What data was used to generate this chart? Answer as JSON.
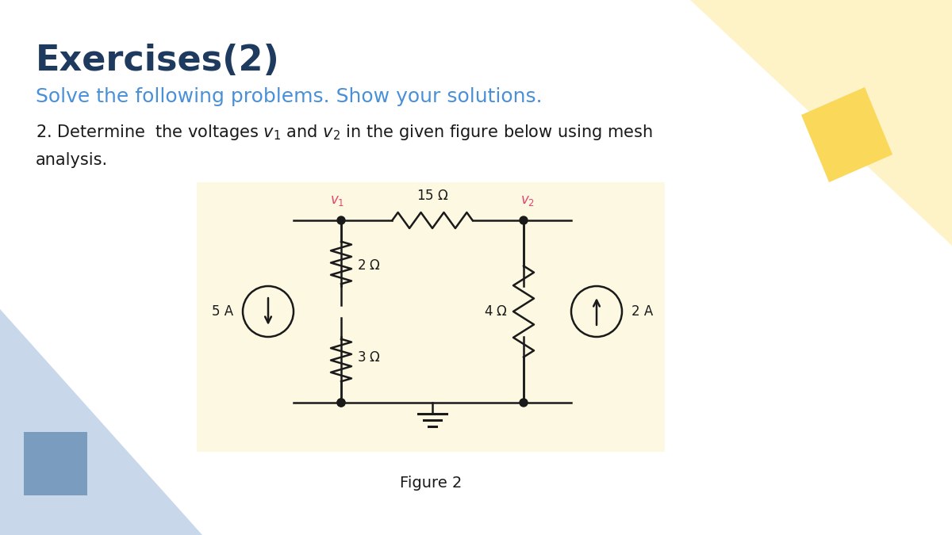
{
  "bg_color": "#ffffff",
  "circuit_bg": "#fdf8e1",
  "title": "Exercises(2)",
  "title_color": "#1e3a5f",
  "subtitle": "Solve the following problems. Show your solutions.",
  "subtitle_color": "#4a90d9",
  "text_color": "#1a1a1a",
  "figure_caption": "Figure 2",
  "deco_yellow_light": "#fef3c7",
  "deco_yellow_med": "#f9d85a",
  "deco_blue_light": "#c8d8ea",
  "deco_blue_dark": "#7a9cbf",
  "wire_color": "#1a1a1a",
  "node_color": "#1a1a1a",
  "label_v_color": "#e8436e",
  "ground_color": "#1a1a1a"
}
